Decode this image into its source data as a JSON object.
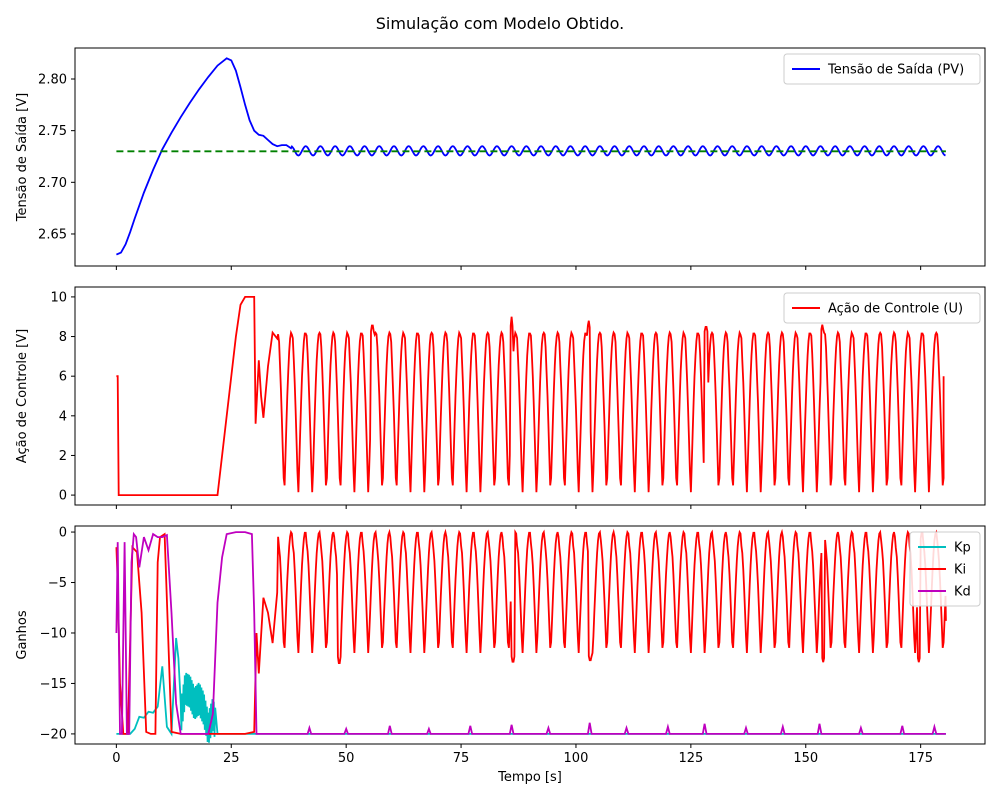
{
  "title": "Simulação com Modelo Obtido.",
  "xlabel": "Tempo [s]",
  "x_ticks": [
    0,
    25,
    50,
    75,
    100,
    125,
    150,
    175
  ],
  "x_range": [
    -9,
    189
  ],
  "chart_data": [
    {
      "type": "line",
      "ylabel": "Tensão de Saída [V]",
      "ylabel_color": "#0000ff",
      "ylim": [
        2.619,
        2.83
      ],
      "yticks": [
        2.65,
        2.7,
        2.75,
        2.8
      ],
      "ytick_labels": [
        "2.65",
        "2.70",
        "2.75",
        "2.80"
      ],
      "legend_position": "top-right",
      "series": [
        {
          "name": "Tensão de Saída (PV)",
          "color": "#0000ff",
          "style": "solid",
          "in_legend": true,
          "x": [
            0,
            1,
            2,
            3,
            4,
            6,
            8,
            10,
            12,
            14,
            16,
            18,
            20,
            22,
            24,
            25,
            26,
            27,
            28,
            29,
            30,
            31,
            32,
            33,
            34,
            35,
            36,
            37,
            38
          ],
          "y": [
            2.63,
            2.632,
            2.64,
            2.652,
            2.665,
            2.69,
            2.712,
            2.732,
            2.748,
            2.763,
            2.777,
            2.79,
            2.802,
            2.813,
            2.82,
            2.818,
            2.808,
            2.792,
            2.775,
            2.76,
            2.75,
            2.746,
            2.745,
            2.741,
            2.737,
            2.735,
            2.736,
            2.736,
            2.733
          ],
          "osc": {
            "x_start": 38,
            "x_end": 180.5,
            "period": 3.2,
            "center": 2.7305,
            "amplitude": 0.0045
          }
        },
        {
          "name": "Setpoint",
          "color": "#008000",
          "style": "dashed",
          "in_legend": false,
          "x": [
            0,
            180.5
          ],
          "y": [
            2.73,
            2.73
          ]
        }
      ]
    },
    {
      "type": "line",
      "ylabel": "Ação de Controle [V]",
      "ylabel_color": "#ff0000",
      "ylim": [
        -0.5,
        10.5
      ],
      "yticks": [
        0,
        2,
        4,
        6,
        8,
        10
      ],
      "ytick_labels": [
        "0",
        "2",
        "4",
        "6",
        "8",
        "10"
      ],
      "legend_position": "top-right",
      "series": [
        {
          "name": "Ação de Controle (U)",
          "color": "#ff0000",
          "style": "solid",
          "in_legend": true,
          "x": [
            0,
            0.3,
            0.5,
            22,
            23,
            24,
            25,
            26,
            27,
            28,
            29,
            30,
            30.3,
            31,
            31.5,
            32,
            33,
            34,
            35
          ],
          "y": [
            6,
            6,
            0,
            0,
            2,
            4,
            6,
            8,
            9.6,
            10,
            10,
            10,
            3.6,
            6.8,
            5,
            3.9,
            6.5,
            8.2,
            7.9
          ],
          "osc": {
            "x_start": 35,
            "x_end": 180,
            "period": 3.05,
            "high": 8.2,
            "low": 0,
            "peaks": [
              {
                "x": 86,
                "y": 9.0
              },
              {
                "x": 102.8,
                "y": 8.8
              },
              {
                "x": 55.7,
                "y": 8.7
              },
              {
                "x": 128.3,
                "y": 8.6
              },
              {
                "x": 153.6,
                "y": 8.6
              }
            ],
            "end_value": 6
          }
        }
      ]
    },
    {
      "type": "line",
      "ylabel": "Ganhos",
      "ylabel_color": "#000000",
      "ylim": [
        -21,
        0.6
      ],
      "yticks": [
        -20,
        -15,
        -10,
        -5,
        0
      ],
      "ytick_labels": [
        "−20",
        "−15",
        "−10",
        "−5",
        "0"
      ],
      "legend_position": "top-right",
      "series": [
        {
          "name": "Kp",
          "color": "#00bfbf",
          "style": "solid",
          "in_legend": true,
          "x": [
            0,
            1,
            2,
            3,
            4,
            5,
            6,
            7,
            8,
            9,
            10,
            11,
            12,
            13,
            13.5,
            14,
            15,
            16,
            17,
            18,
            19,
            20,
            21,
            22,
            23,
            180.5
          ],
          "y": [
            -20,
            -20,
            -20,
            -20,
            -19.5,
            -18.3,
            -18.4,
            -17.8,
            -17.9,
            -17.3,
            -13.3,
            -19.3,
            -20,
            -10.5,
            -12.5,
            -18.5,
            -15.5,
            -15.8,
            -17,
            -16.5,
            -17.5,
            -19.5,
            -18,
            -20,
            -20,
            -20
          ],
          "noise": {
            "x_start": 14,
            "x_end": 21.5,
            "amplitude": 1.6,
            "period": 0.3
          }
        },
        {
          "name": "Ki",
          "color": "#ff0000",
          "style": "solid",
          "in_legend": true,
          "x": [
            0,
            0.3,
            0.8,
            1.5,
            2.5,
            3.5,
            4.5,
            5.5,
            6.5,
            7.5,
            8.5,
            9,
            9.5,
            10.5,
            12,
            14,
            16,
            18,
            20,
            22,
            25,
            28,
            30,
            30.5,
            31,
            32,
            33,
            34,
            35
          ],
          "y": [
            -1.5,
            -5,
            -15,
            -20,
            -20,
            -1.5,
            -2,
            -8,
            -19.8,
            -20,
            -20,
            -3,
            -0.5,
            -0.2,
            -19.8,
            -20,
            -20,
            -20,
            -20,
            -20,
            -20,
            -20,
            -19.8,
            -10,
            -14,
            -6.5,
            -8,
            -11,
            -6
          ],
          "osc": {
            "x_start": 35,
            "x_end": 180.5,
            "period": 3.05,
            "high": 0,
            "low": -12.2,
            "dips": [
              {
                "x": 48.5,
                "y": -13.3
              },
              {
                "x": 86.3,
                "y": -13.1
              },
              {
                "x": 103.1,
                "y": -12.9
              },
              {
                "x": 153.8,
                "y": -12.9
              },
              {
                "x": 174.6,
                "y": -12.9
              }
            ],
            "end_value": -8.8
          }
        },
        {
          "name": "Kd",
          "color": "#bf00bf",
          "style": "solid",
          "in_legend": true,
          "x": [
            0,
            0.3,
            0.8,
            1.2,
            1.8,
            2.3,
            2.8,
            3.3,
            3.8,
            4.3,
            5,
            6,
            7,
            8,
            9,
            10,
            11,
            12,
            13,
            14,
            15,
            16,
            17,
            18,
            19,
            20,
            21,
            22,
            23,
            24,
            26,
            28,
            29.5,
            30,
            30.5,
            180.5
          ],
          "y": [
            -10,
            -1,
            -20,
            -20,
            -1,
            -20,
            -20,
            -3,
            -0.2,
            -0.5,
            -3.5,
            -0.5,
            -1.8,
            -0.2,
            -0.5,
            -0.5,
            -0.3,
            -8,
            -17,
            -20,
            -20,
            -20,
            -20,
            -20,
            -20,
            -20,
            -18,
            -7,
            -2.5,
            -0.2,
            0,
            0,
            -0.2,
            -8,
            -20,
            -20
          ],
          "spikes": [
            {
              "x": 42,
              "y": -19.4
            },
            {
              "x": 50,
              "y": -19.5
            },
            {
              "x": 59.5,
              "y": -19.2
            },
            {
              "x": 68,
              "y": -19.5
            },
            {
              "x": 77,
              "y": -19.2
            },
            {
              "x": 86,
              "y": -19.1
            },
            {
              "x": 94,
              "y": -19.4
            },
            {
              "x": 103,
              "y": -18.9
            },
            {
              "x": 111,
              "y": -19.4
            },
            {
              "x": 120,
              "y": -19.3
            },
            {
              "x": 128,
              "y": -19.0
            },
            {
              "x": 137,
              "y": -19.4
            },
            {
              "x": 145,
              "y": -19.3
            },
            {
              "x": 153,
              "y": -19.0
            },
            {
              "x": 162,
              "y": -19.4
            },
            {
              "x": 171,
              "y": -19.2
            },
            {
              "x": 178,
              "y": -19.3
            }
          ]
        }
      ]
    }
  ]
}
